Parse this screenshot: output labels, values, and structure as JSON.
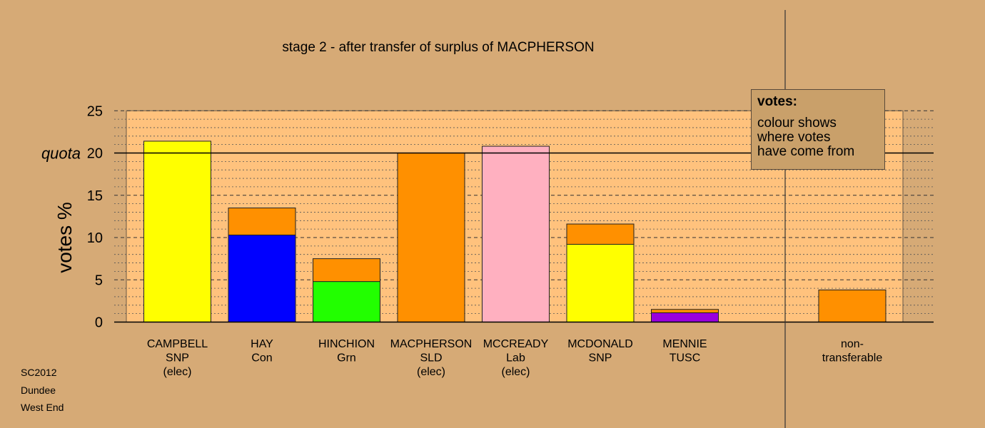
{
  "chart_data": {
    "type": "bar",
    "stacked": true,
    "title": "stage 2 - after transfer of surplus of MACPHERSON",
    "ylabel": "votes %",
    "ylim": [
      0,
      25
    ],
    "yticks": [
      0,
      5,
      10,
      15,
      20,
      25
    ],
    "quota_label": "quota",
    "quota_value": 20,
    "grid": "dashed horizontal lines",
    "candidates": [
      {
        "name": "CAMPBELL",
        "party": "SNP",
        "note": "(elec)",
        "segments": [
          {
            "value": 21.4,
            "color": "#ffff00"
          }
        ]
      },
      {
        "name": "HAY",
        "party": "Con",
        "note": "",
        "segments": [
          {
            "value": 10.3,
            "color": "#0000ff"
          },
          {
            "value": 3.2,
            "color": "#ff9000"
          }
        ]
      },
      {
        "name": "HINCHION",
        "party": "Grn",
        "note": "",
        "segments": [
          {
            "value": 4.8,
            "color": "#22ff00"
          },
          {
            "value": 2.7,
            "color": "#ff9000"
          }
        ]
      },
      {
        "name": "MACPHERSON",
        "party": "SLD",
        "note": "(elec)",
        "segments": [
          {
            "value": 20.0,
            "color": "#ff9000"
          }
        ]
      },
      {
        "name": "MCCREADY",
        "party": "Lab",
        "note": "(elec)",
        "segments": [
          {
            "value": 20.8,
            "color": "#ffb0c0"
          }
        ]
      },
      {
        "name": "MCDONALD",
        "party": "SNP",
        "note": "",
        "segments": [
          {
            "value": 9.2,
            "color": "#ffff00"
          },
          {
            "value": 2.4,
            "color": "#ff9000"
          }
        ]
      },
      {
        "name": "MENNIE",
        "party": "TUSC",
        "note": "",
        "segments": [
          {
            "value": 1.1,
            "color": "#9900dd"
          },
          {
            "value": 0.4,
            "color": "#ff9000"
          }
        ]
      }
    ],
    "nontransferable": {
      "label_line1": "non-",
      "label_line2": "transferable",
      "segments": [
        {
          "value": 3.8,
          "color": "#ff9000"
        }
      ]
    }
  },
  "legend": {
    "title": "votes:",
    "lines": [
      "colour shows",
      "where votes",
      "have come from"
    ]
  },
  "footnote": {
    "line1": "SC2012",
    "line2": "Dundee",
    "line3": "West End"
  },
  "colors": {
    "background": "#d6aa76",
    "plot_area": "#ffc27d",
    "legend_box": "#c9a06a"
  }
}
